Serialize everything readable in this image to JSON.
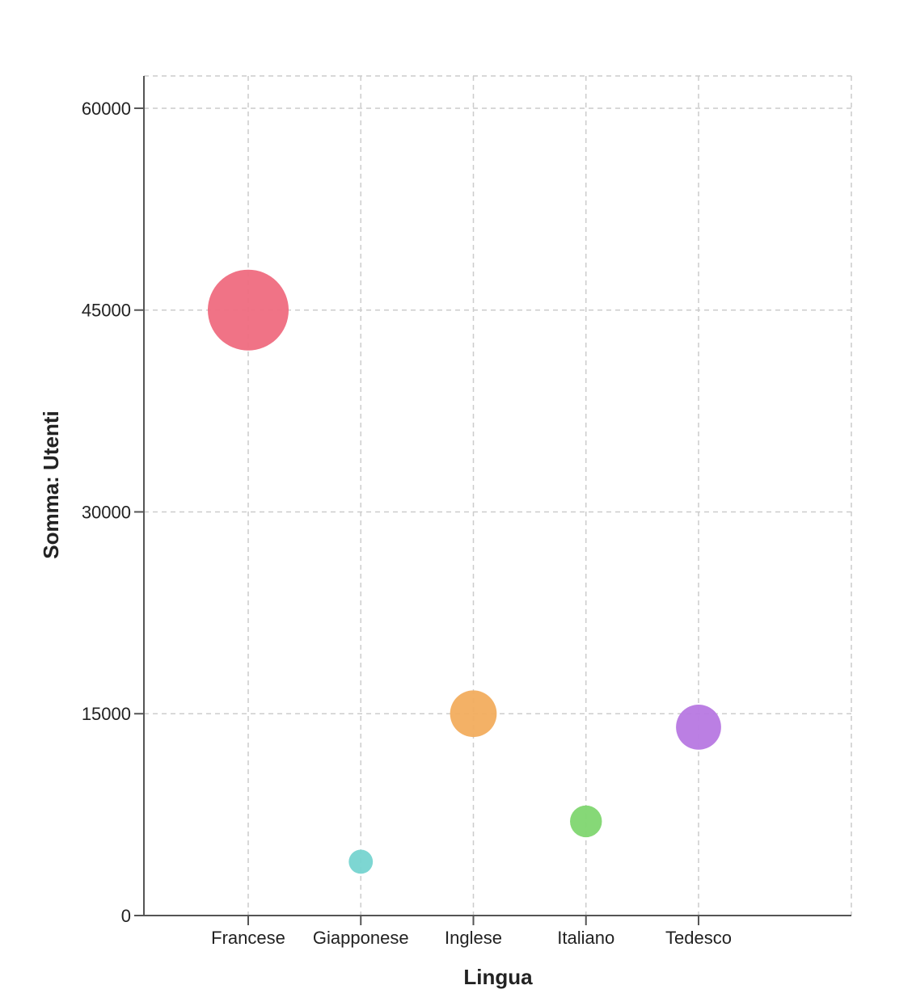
{
  "chart_data": {
    "type": "scatter",
    "subtype": "bubble",
    "title": "",
    "xlabel": "Lingua",
    "ylabel": "Somma: Utenti",
    "categories": [
      "Francese",
      "Giapponese",
      "Inglese",
      "Italiano",
      "Tedesco"
    ],
    "values": [
      45000,
      4000,
      15000,
      7000,
      14000
    ],
    "colors": [
      "#ef6b80",
      "#76d4d0",
      "#f2ad5e",
      "#80d670",
      "#b778e2"
    ],
    "ylim": [
      0,
      62400
    ],
    "yticks": [
      0,
      15000,
      30000,
      45000,
      60000
    ],
    "grid": true,
    "legend": "none"
  }
}
